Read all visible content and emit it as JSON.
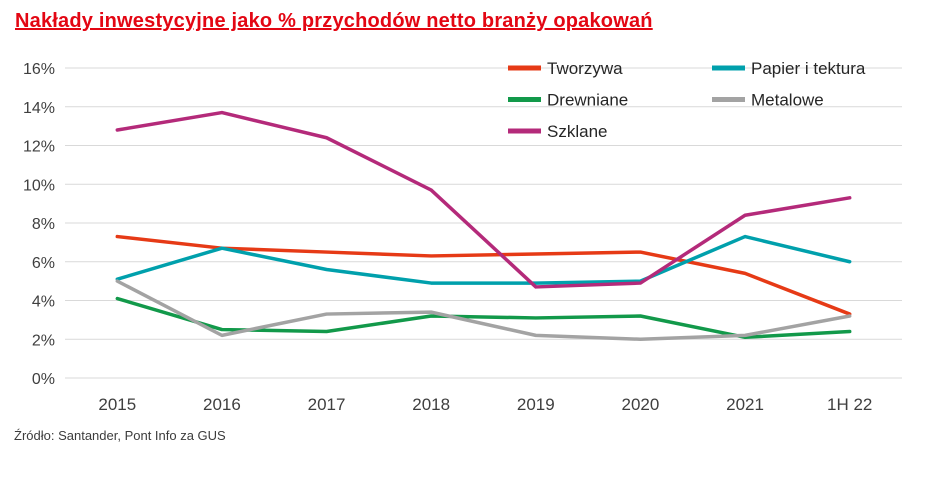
{
  "title": "Nakłady inwestycyjne jako % przychodów netto branży opakowań",
  "source": "Źródło: Santander, Pont Info za GUS",
  "colors": {
    "background": "#ffffff",
    "title": "#e30613",
    "grid": "#d9d9d9",
    "axis_text": "#3f3f3f",
    "legend_text": "#262626",
    "source_text": "#3c3c3c"
  },
  "chart_data": {
    "type": "line",
    "title": "Nakłady inwestycyjne jako % przychodów netto branży opakowań",
    "xlabel": "",
    "ylabel": "",
    "categories": [
      "2015",
      "2016",
      "2017",
      "2018",
      "2019",
      "2020",
      "2021",
      "1H 22"
    ],
    "series": [
      {
        "name": "Tworzywa",
        "color": "#e63a16",
        "values": [
          7.3,
          6.7,
          6.5,
          6.3,
          6.4,
          6.5,
          5.4,
          3.3
        ]
      },
      {
        "name": "Papier i tektura",
        "color": "#00a0ac",
        "values": [
          5.1,
          6.7,
          5.6,
          4.9,
          4.9,
          5.0,
          7.3,
          6.0
        ]
      },
      {
        "name": "Drewniane",
        "color": "#12994a",
        "values": [
          4.1,
          2.5,
          2.4,
          3.2,
          3.1,
          3.2,
          2.1,
          2.4
        ]
      },
      {
        "name": "Metalowe",
        "color": "#a3a3a3",
        "values": [
          5.0,
          2.2,
          3.3,
          3.4,
          2.2,
          2.0,
          2.2,
          3.2
        ]
      },
      {
        "name": "Szklane",
        "color": "#b42a7a",
        "values": [
          12.8,
          13.7,
          12.4,
          9.7,
          4.7,
          4.9,
          8.4,
          9.3
        ]
      }
    ],
    "ylim": [
      0,
      16
    ],
    "ytick_step": 2,
    "ytick_suffix": "%",
    "grid": true,
    "legend_position": "top-right"
  }
}
